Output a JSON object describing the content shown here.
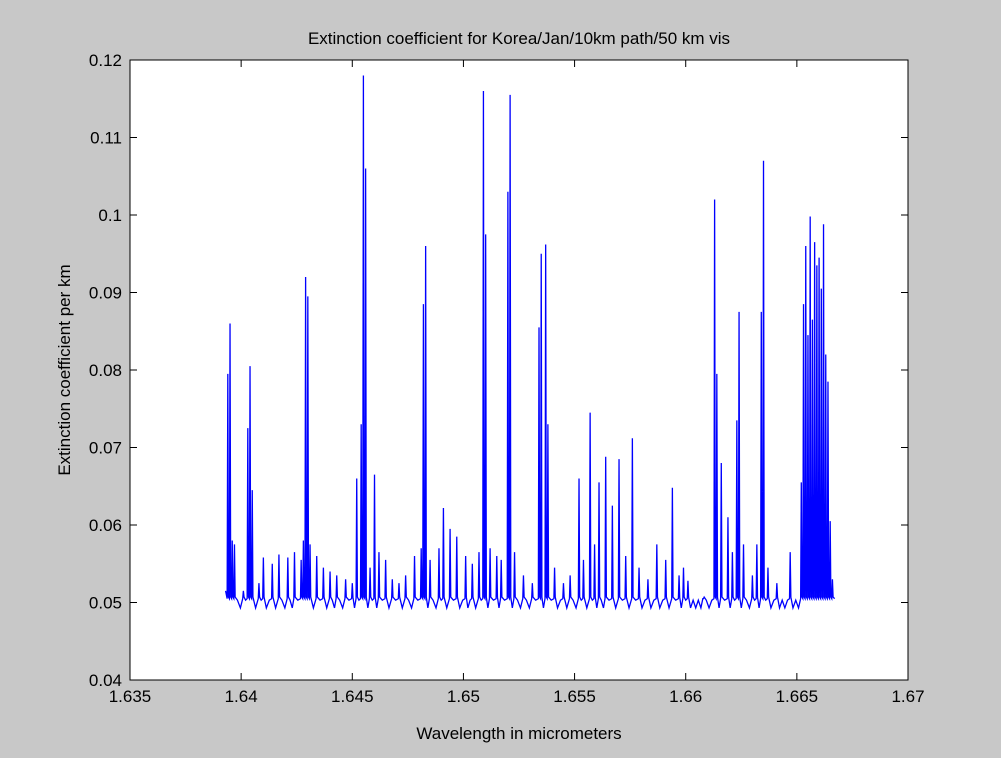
{
  "window": {
    "background_color": "#c8c8c8",
    "axes_background_color": "#ffffff"
  },
  "chart_data": {
    "type": "line",
    "title": "Extinction coefficient for Korea/Jan/10km path/50 km vis",
    "xlabel": "Wavelength in micrometers",
    "ylabel": "Extinction coefficient per km",
    "xlim": [
      1.635,
      1.67
    ],
    "ylim": [
      0.04,
      0.12
    ],
    "xticks": [
      1.635,
      1.64,
      1.645,
      1.65,
      1.655,
      1.66,
      1.665,
      1.67
    ],
    "xtick_labels": [
      "1.635",
      "1.64",
      "1.645",
      "1.65",
      "1.655",
      "1.66",
      "1.665",
      "1.67"
    ],
    "yticks": [
      0.04,
      0.05,
      0.06,
      0.07,
      0.08,
      0.09,
      0.1,
      0.11,
      0.12
    ],
    "ytick_labels": [
      "0.04",
      "0.05",
      "0.06",
      "0.07",
      "0.08",
      "0.09",
      "0.1",
      "0.11",
      "0.12"
    ],
    "grid": false,
    "legend": "none",
    "series": [
      {
        "color": "#0000ff",
        "x_range": [
          1.6393,
          1.6667
        ],
        "baseline": 0.0495,
        "peaks": [
          [
            1.6394,
            0.0795
          ],
          [
            1.6395,
            0.086
          ],
          [
            1.6396,
            0.058
          ],
          [
            1.6397,
            0.0575
          ],
          [
            1.6401,
            0.0515
          ],
          [
            1.6403,
            0.0725
          ],
          [
            1.6404,
            0.0805
          ],
          [
            1.6405,
            0.0645
          ],
          [
            1.6408,
            0.0525
          ],
          [
            1.641,
            0.0558
          ],
          [
            1.6414,
            0.055
          ],
          [
            1.6417,
            0.0562
          ],
          [
            1.6421,
            0.0558
          ],
          [
            1.6424,
            0.0565
          ],
          [
            1.6427,
            0.0555
          ],
          [
            1.6428,
            0.058
          ],
          [
            1.6429,
            0.092
          ],
          [
            1.643,
            0.0895
          ],
          [
            1.6431,
            0.0575
          ],
          [
            1.6434,
            0.056
          ],
          [
            1.6437,
            0.0545
          ],
          [
            1.644,
            0.054
          ],
          [
            1.6443,
            0.0535
          ],
          [
            1.6447,
            0.053
          ],
          [
            1.645,
            0.0525
          ],
          [
            1.6452,
            0.066
          ],
          [
            1.6454,
            0.073
          ],
          [
            1.6455,
            0.118
          ],
          [
            1.6456,
            0.106
          ],
          [
            1.6458,
            0.0545
          ],
          [
            1.646,
            0.0665
          ],
          [
            1.6462,
            0.0565
          ],
          [
            1.6465,
            0.0555
          ],
          [
            1.6468,
            0.053
          ],
          [
            1.6471,
            0.0525
          ],
          [
            1.6474,
            0.0535
          ],
          [
            1.6478,
            0.056
          ],
          [
            1.6481,
            0.057
          ],
          [
            1.6482,
            0.0885
          ],
          [
            1.6483,
            0.096
          ],
          [
            1.6485,
            0.0555
          ],
          [
            1.6489,
            0.057
          ],
          [
            1.6491,
            0.0622
          ],
          [
            1.6494,
            0.0595
          ],
          [
            1.6497,
            0.0585
          ],
          [
            1.6501,
            0.056
          ],
          [
            1.6504,
            0.055
          ],
          [
            1.6507,
            0.0565
          ],
          [
            1.6509,
            0.116
          ],
          [
            1.651,
            0.0975
          ],
          [
            1.6512,
            0.057
          ],
          [
            1.6515,
            0.056
          ],
          [
            1.6517,
            0.0555
          ],
          [
            1.652,
            0.103
          ],
          [
            1.6521,
            0.1155
          ],
          [
            1.6523,
            0.0565
          ],
          [
            1.6527,
            0.0535
          ],
          [
            1.6531,
            0.0525
          ],
          [
            1.6534,
            0.0855
          ],
          [
            1.6535,
            0.095
          ],
          [
            1.6537,
            0.0962
          ],
          [
            1.6538,
            0.073
          ],
          [
            1.6541,
            0.0545
          ],
          [
            1.6545,
            0.0525
          ],
          [
            1.6548,
            0.0535
          ],
          [
            1.6552,
            0.066
          ],
          [
            1.6554,
            0.0555
          ],
          [
            1.6557,
            0.0745
          ],
          [
            1.6559,
            0.0575
          ],
          [
            1.6561,
            0.0655
          ],
          [
            1.6564,
            0.0688
          ],
          [
            1.6567,
            0.0625
          ],
          [
            1.657,
            0.0685
          ],
          [
            1.6573,
            0.056
          ],
          [
            1.6576,
            0.0712
          ],
          [
            1.6579,
            0.0545
          ],
          [
            1.6583,
            0.053
          ],
          [
            1.6587,
            0.0575
          ],
          [
            1.6591,
            0.0555
          ],
          [
            1.6594,
            0.0648
          ],
          [
            1.6597,
            0.0535
          ],
          [
            1.6599,
            0.0545
          ],
          [
            1.6601,
            0.0528
          ],
          [
            1.6608,
            0.0505
          ],
          [
            1.6613,
            0.102
          ],
          [
            1.6614,
            0.0795
          ],
          [
            1.6616,
            0.068
          ],
          [
            1.6619,
            0.061
          ],
          [
            1.6621,
            0.0565
          ],
          [
            1.6623,
            0.0735
          ],
          [
            1.6624,
            0.0875
          ],
          [
            1.6626,
            0.0575
          ],
          [
            1.663,
            0.0535
          ],
          [
            1.6632,
            0.0575
          ],
          [
            1.6634,
            0.0875
          ],
          [
            1.6635,
            0.107
          ],
          [
            1.6637,
            0.0545
          ],
          [
            1.6641,
            0.0525
          ],
          [
            1.6647,
            0.0565
          ],
          [
            1.6652,
            0.0655
          ],
          [
            1.6653,
            0.0885
          ],
          [
            1.6654,
            0.096
          ],
          [
            1.6655,
            0.0845
          ],
          [
            1.6656,
            0.0998
          ],
          [
            1.6657,
            0.0865
          ],
          [
            1.6658,
            0.0965
          ],
          [
            1.6659,
            0.0935
          ],
          [
            1.666,
            0.0945
          ],
          [
            1.6661,
            0.0905
          ],
          [
            1.6662,
            0.0988
          ],
          [
            1.6663,
            0.082
          ],
          [
            1.6664,
            0.0785
          ],
          [
            1.6665,
            0.0605
          ],
          [
            1.6666,
            0.053
          ]
        ]
      }
    ]
  }
}
